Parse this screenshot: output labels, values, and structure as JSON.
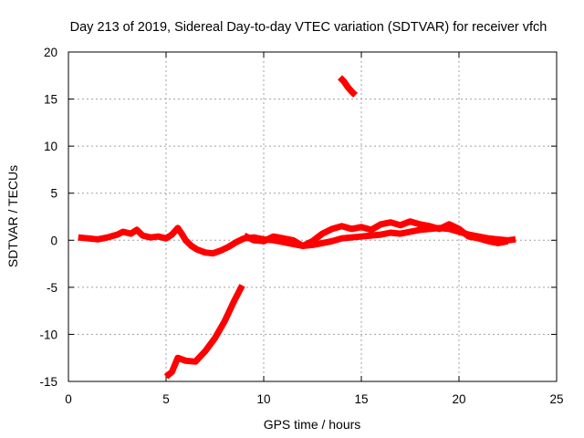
{
  "chart_data": {
    "type": "scatter",
    "title": "Day 213 of 2019, Sidereal Day-to-day VTEC variation (SDTVAR) for receiver vfch",
    "xlabel": "GPS time / hours",
    "ylabel": "SDTVAR / TECUs",
    "xlim": [
      0,
      25
    ],
    "ylim": [
      -15,
      20
    ],
    "xticks": [
      0,
      5,
      10,
      15,
      20,
      25
    ],
    "yticks": [
      -15,
      -10,
      -5,
      0,
      5,
      10,
      15,
      20
    ],
    "grid": true,
    "color": "#ff0000",
    "series": [
      {
        "name": "main-band-a",
        "x": [
          0.5,
          1.0,
          1.5,
          2.0,
          2.5,
          2.8,
          3.2,
          3.5,
          3.8,
          4.2,
          4.6,
          5.0,
          5.3,
          5.6,
          5.8,
          6.0,
          6.3,
          6.6,
          7.0,
          7.4,
          7.8,
          8.2,
          8.6,
          9.0,
          9.5,
          10.0,
          10.5,
          11.0,
          11.5,
          12.0,
          12.5,
          13.0,
          13.5,
          14.0,
          14.5,
          15.0,
          15.5,
          16.0,
          16.5,
          17.0,
          17.5,
          18.0,
          18.5,
          19.0,
          19.5,
          20.0,
          20.5,
          21.0,
          21.5,
          22.0,
          22.5,
          22.9
        ],
        "y": [
          0.3,
          0.2,
          0.1,
          0.3,
          0.6,
          0.9,
          0.7,
          1.1,
          0.5,
          0.3,
          0.4,
          0.2,
          0.6,
          1.3,
          0.7,
          0.0,
          -0.6,
          -1.0,
          -1.3,
          -1.4,
          -1.1,
          -0.7,
          -0.2,
          0.2,
          0.3,
          0.1,
          0.0,
          -0.2,
          -0.4,
          -0.6,
          -0.5,
          -0.3,
          -0.1,
          0.2,
          0.3,
          0.4,
          0.5,
          0.6,
          0.8,
          0.7,
          0.9,
          1.1,
          1.2,
          1.3,
          1.2,
          0.9,
          0.6,
          0.4,
          0.2,
          0.1,
          0.0,
          0.1
        ]
      },
      {
        "name": "main-band-b",
        "x": [
          9.0,
          9.5,
          10.0,
          10.5,
          11.0,
          11.5,
          12.0,
          12.5,
          13.0,
          13.5,
          14.0,
          14.5,
          15.0,
          15.5,
          16.0,
          16.5,
          17.0,
          17.5,
          18.0,
          18.5,
          19.0,
          19.5,
          20.0,
          20.5,
          21.0,
          21.5,
          22.0,
          22.5
        ],
        "y": [
          0.5,
          0.0,
          -0.1,
          0.4,
          0.2,
          0.0,
          -0.6,
          -0.1,
          0.7,
          1.2,
          1.5,
          1.2,
          1.4,
          1.1,
          1.7,
          1.9,
          1.6,
          2.0,
          1.7,
          1.5,
          1.2,
          1.7,
          1.2,
          0.4,
          0.2,
          -0.1,
          -0.3,
          -0.1
        ]
      },
      {
        "name": "low-arc",
        "x": [
          5.0,
          5.3,
          5.6,
          6.0,
          6.5,
          7.0,
          7.5,
          8.0,
          8.5,
          8.9
        ],
        "y": [
          -14.5,
          -14.0,
          -12.5,
          -12.8,
          -12.9,
          -11.8,
          -10.4,
          -8.6,
          -6.4,
          -4.8
        ]
      },
      {
        "name": "high-arc",
        "x": [
          13.9,
          14.1,
          14.3,
          14.5,
          14.7
        ],
        "y": [
          17.3,
          16.9,
          16.3,
          15.8,
          15.4
        ]
      }
    ]
  }
}
